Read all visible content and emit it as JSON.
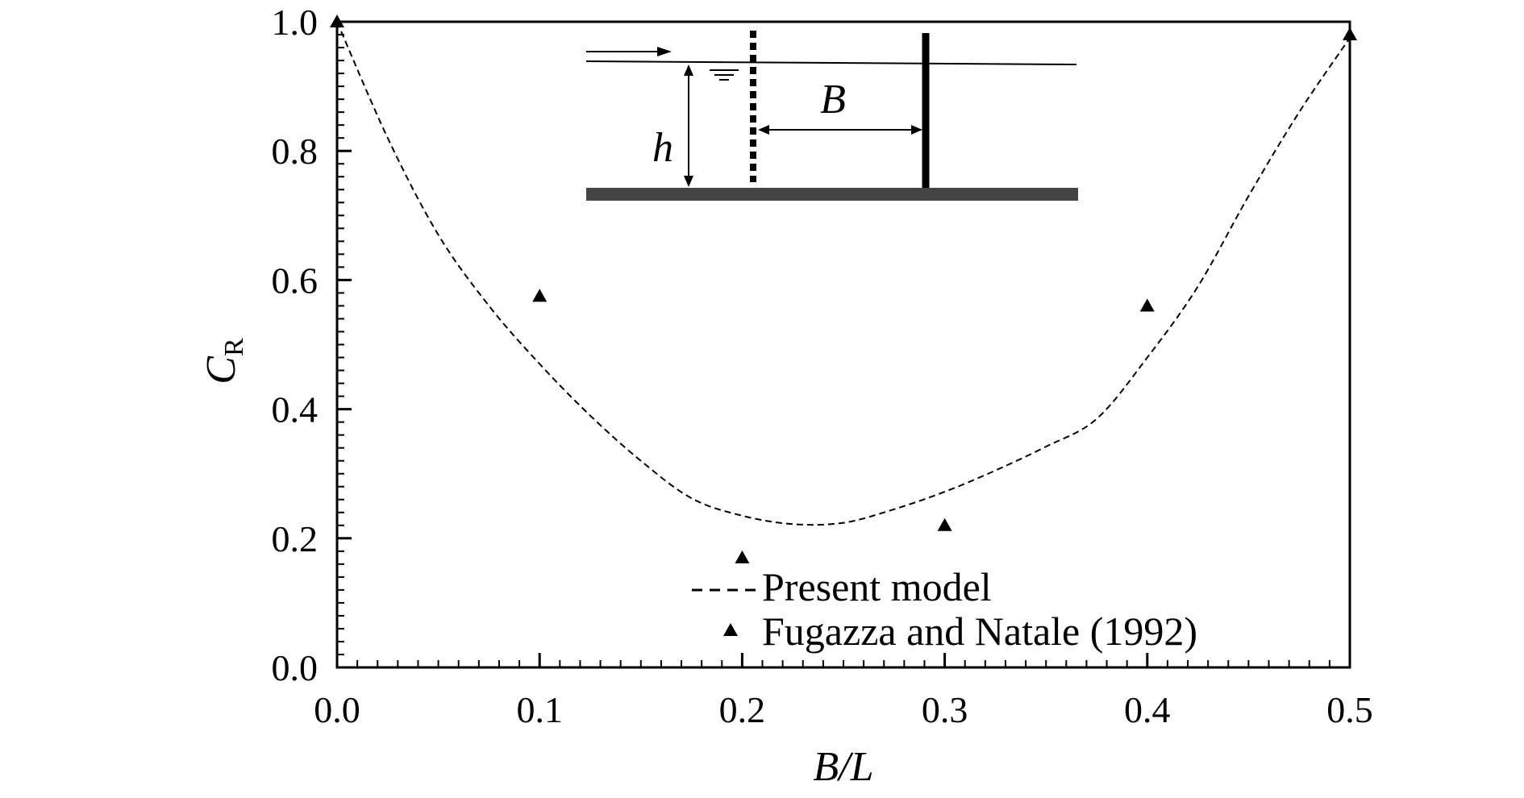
{
  "chart_data": {
    "type": "line",
    "title": "",
    "xlabel": "B/L",
    "ylabel": {
      "main": "C",
      "subscript": "R"
    },
    "xlim": [
      0,
      0.5
    ],
    "ylim": [
      0,
      1.0
    ],
    "x_ticks": [
      "0.0",
      "0.1",
      "0.2",
      "0.3",
      "0.4",
      "0.5"
    ],
    "x_tick_values": [
      0,
      0.1,
      0.2,
      0.3,
      0.4,
      0.5
    ],
    "y_ticks": [
      "0.0",
      "0.2",
      "0.4",
      "0.6",
      "0.8",
      "1.0"
    ],
    "y_tick_values": [
      0,
      0.2,
      0.4,
      0.6,
      0.8,
      1.0
    ],
    "grid": false,
    "legend_position": "bottom-right",
    "series": [
      {
        "name": "Present model",
        "style": "dashed-line",
        "color": "#000000",
        "x": [
          0.0,
          0.025,
          0.05,
          0.075,
          0.1,
          0.125,
          0.15,
          0.175,
          0.2,
          0.225,
          0.25,
          0.275,
          0.3,
          0.325,
          0.35,
          0.375,
          0.4,
          0.425,
          0.45,
          0.475,
          0.5
        ],
        "y": [
          1.0,
          0.82,
          0.67,
          0.56,
          0.47,
          0.39,
          0.32,
          0.262,
          0.235,
          0.222,
          0.224,
          0.245,
          0.272,
          0.305,
          0.342,
          0.385,
          0.48,
          0.59,
          0.73,
          0.86,
          0.975
        ]
      },
      {
        "name": "Fugazza and Natale (1992)",
        "style": "triangle-marker",
        "color": "#000000",
        "x": [
          0.0,
          0.1,
          0.2,
          0.3,
          0.4,
          0.5
        ],
        "y": [
          1.0,
          0.575,
          0.17,
          0.22,
          0.56,
          0.98
        ]
      }
    ],
    "inset": {
      "labels": {
        "h": "h",
        "B": "B"
      }
    }
  }
}
